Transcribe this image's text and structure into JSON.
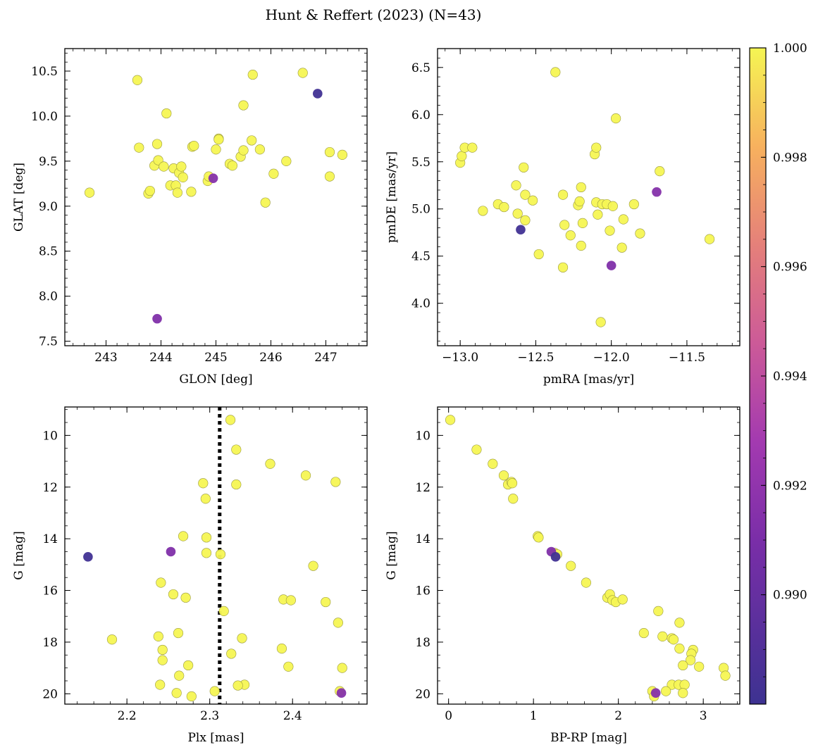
{
  "figure": {
    "title": "Hunt & Reffert (2023) (N=43)"
  },
  "colorbar": {
    "colormap": "plasma",
    "range": [
      0.988,
      1.0
    ],
    "ticks": [
      "1.000",
      "0.998",
      "0.996",
      "0.994",
      "0.992",
      "0.990"
    ],
    "tick_values": [
      1.0,
      0.998,
      0.996,
      0.994,
      0.992,
      0.99
    ]
  },
  "chart_data": [
    {
      "type": "scatter",
      "xlabel": "GLON [deg]",
      "ylabel": "GLAT [deg]",
      "xlim": [
        242.25,
        247.75
      ],
      "ylim": [
        7.45,
        10.75
      ],
      "xticks": [
        "243",
        "244",
        "245",
        "246",
        "247"
      ],
      "yticks": [
        "7.5",
        "8.0",
        "8.5",
        "9.0",
        "9.5",
        "10.0",
        "10.5"
      ],
      "points": [
        [
          242.7,
          9.15,
          1.0
        ],
        [
          243.57,
          10.4,
          1.0
        ],
        [
          243.6,
          9.65,
          1.0
        ],
        [
          243.77,
          9.14,
          1.0
        ],
        [
          243.8,
          9.17,
          1.0
        ],
        [
          243.88,
          9.45,
          1.0
        ],
        [
          243.93,
          9.69,
          1.0
        ],
        [
          243.95,
          9.51,
          1.0
        ],
        [
          244.1,
          10.03,
          1.0
        ],
        [
          244.17,
          9.23,
          1.0
        ],
        [
          244.23,
          9.42,
          1.0
        ],
        [
          244.27,
          9.23,
          1.0
        ],
        [
          244.3,
          9.15,
          1.0
        ],
        [
          244.33,
          9.37,
          1.0
        ],
        [
          244.37,
          9.44,
          1.0
        ],
        [
          244.4,
          9.32,
          1.0
        ],
        [
          244.55,
          9.16,
          1.0
        ],
        [
          244.57,
          9.66,
          1.0
        ],
        [
          244.6,
          9.67,
          1.0
        ],
        [
          244.85,
          9.28,
          1.0
        ],
        [
          244.87,
          9.33,
          1.0
        ],
        [
          245.0,
          9.63,
          1.0
        ],
        [
          245.05,
          9.75,
          1.0
        ],
        [
          245.25,
          9.47,
          1.0
        ],
        [
          245.3,
          9.45,
          1.0
        ],
        [
          245.45,
          9.55,
          1.0
        ],
        [
          245.5,
          10.12,
          1.0
        ],
        [
          245.5,
          9.62,
          1.0
        ],
        [
          245.67,
          10.46,
          1.0
        ],
        [
          245.65,
          9.73,
          1.0
        ],
        [
          245.8,
          9.63,
          1.0
        ],
        [
          245.9,
          9.04,
          1.0
        ],
        [
          246.05,
          9.36,
          1.0
        ],
        [
          246.28,
          9.5,
          1.0
        ],
        [
          246.58,
          10.48,
          1.0
        ],
        [
          247.07,
          9.6,
          1.0
        ],
        [
          247.07,
          9.33,
          1.0
        ],
        [
          247.3,
          9.57,
          1.0
        ],
        [
          244.95,
          9.31,
          0.9915
        ],
        [
          243.93,
          7.75,
          0.9912
        ],
        [
          246.85,
          10.25,
          0.9882
        ],
        [
          245.05,
          9.74,
          1.0
        ],
        [
          244.05,
          9.44,
          1.0
        ]
      ]
    },
    {
      "type": "scatter",
      "xlabel": "pmRA [mas/yr]",
      "ylabel": "pmDE [mas/yr]",
      "xlim": [
        -13.15,
        -11.15
      ],
      "ylim": [
        3.55,
        6.7
      ],
      "xticks": [
        "−13.0",
        "−12.5",
        "−12.0",
        "−11.5"
      ],
      "yticks": [
        "4.0",
        "4.5",
        "5.0",
        "5.5",
        "6.0",
        "6.5"
      ],
      "points": [
        [
          -13.0,
          5.49,
          1.0
        ],
        [
          -12.99,
          5.56,
          1.0
        ],
        [
          -12.97,
          5.65,
          1.0
        ],
        [
          -12.92,
          5.65,
          1.0
        ],
        [
          -12.85,
          4.98,
          1.0
        ],
        [
          -12.75,
          5.05,
          1.0
        ],
        [
          -12.71,
          5.02,
          1.0
        ],
        [
          -12.63,
          5.25,
          1.0
        ],
        [
          -12.62,
          4.95,
          1.0
        ],
        [
          -12.58,
          5.44,
          1.0
        ],
        [
          -12.57,
          5.15,
          1.0
        ],
        [
          -12.57,
          4.88,
          1.0
        ],
        [
          -12.52,
          5.09,
          1.0
        ],
        [
          -12.48,
          4.52,
          1.0
        ],
        [
          -12.37,
          6.45,
          1.0
        ],
        [
          -12.32,
          5.15,
          1.0
        ],
        [
          -12.31,
          4.83,
          1.0
        ],
        [
          -12.32,
          4.38,
          1.0
        ],
        [
          -12.27,
          4.72,
          1.0
        ],
        [
          -12.22,
          5.04,
          1.0
        ],
        [
          -12.21,
          5.08,
          1.0
        ],
        [
          -12.2,
          5.23,
          1.0
        ],
        [
          -12.19,
          4.85,
          1.0
        ],
        [
          -12.2,
          4.61,
          1.0
        ],
        [
          -12.11,
          5.58,
          1.0
        ],
        [
          -12.1,
          5.65,
          1.0
        ],
        [
          -12.09,
          4.94,
          1.0
        ],
        [
          -12.1,
          5.07,
          1.0
        ],
        [
          -12.06,
          5.05,
          1.0
        ],
        [
          -12.03,
          5.05,
          1.0
        ],
        [
          -12.01,
          4.77,
          1.0
        ],
        [
          -11.99,
          5.03,
          1.0
        ],
        [
          -12.07,
          3.8,
          1.0
        ],
        [
          -11.97,
          5.96,
          1.0
        ],
        [
          -11.92,
          4.89,
          1.0
        ],
        [
          -11.93,
          4.59,
          1.0
        ],
        [
          -11.85,
          5.05,
          1.0
        ],
        [
          -11.81,
          4.74,
          1.0
        ],
        [
          -11.68,
          5.4,
          1.0
        ],
        [
          -11.35,
          4.68,
          1.0
        ],
        [
          -11.7,
          5.18,
          0.9915
        ],
        [
          -12.0,
          4.4,
          0.9912
        ],
        [
          -12.6,
          4.78,
          0.9882
        ]
      ]
    },
    {
      "type": "scatter",
      "xlabel": "Plx [mas]",
      "ylabel": "G [mag]",
      "xlim": [
        2.125,
        2.49
      ],
      "ylim": [
        20.4,
        8.9
      ],
      "y_inverted": true,
      "xticks": [
        "2.2",
        "2.3",
        "2.4"
      ],
      "yticks": [
        "10",
        "12",
        "14",
        "16",
        "18",
        "20"
      ],
      "vline": {
        "x": 2.312,
        "style": "dotted",
        "color": "#000000"
      },
      "points": [
        [
          2.325,
          9.4,
          1.0
        ],
        [
          2.332,
          10.55,
          1.0
        ],
        [
          2.373,
          11.1,
          1.0
        ],
        [
          2.292,
          11.85,
          1.0
        ],
        [
          2.332,
          11.9,
          1.0
        ],
        [
          2.416,
          11.55,
          1.0
        ],
        [
          2.452,
          11.8,
          1.0
        ],
        [
          2.295,
          12.45,
          1.0
        ],
        [
          2.268,
          13.9,
          1.0
        ],
        [
          2.296,
          13.95,
          1.0
        ],
        [
          2.296,
          14.55,
          1.0
        ],
        [
          2.313,
          14.6,
          1.0
        ],
        [
          2.425,
          15.05,
          1.0
        ],
        [
          2.241,
          15.7,
          1.0
        ],
        [
          2.256,
          16.15,
          1.0
        ],
        [
          2.271,
          16.28,
          1.0
        ],
        [
          2.389,
          16.35,
          1.0
        ],
        [
          2.398,
          16.38,
          1.0
        ],
        [
          2.44,
          16.45,
          1.0
        ],
        [
          2.317,
          16.8,
          1.0
        ],
        [
          2.455,
          17.25,
          1.0
        ],
        [
          2.262,
          17.65,
          1.0
        ],
        [
          2.238,
          17.78,
          1.0
        ],
        [
          2.182,
          17.9,
          1.0
        ],
        [
          2.339,
          17.85,
          1.0
        ],
        [
          2.243,
          18.3,
          1.0
        ],
        [
          2.387,
          18.25,
          1.0
        ],
        [
          2.326,
          18.45,
          1.0
        ],
        [
          2.243,
          18.7,
          1.0
        ],
        [
          2.274,
          18.9,
          1.0
        ],
        [
          2.395,
          18.95,
          1.0
        ],
        [
          2.46,
          19.0,
          1.0
        ],
        [
          2.263,
          19.3,
          1.0
        ],
        [
          2.24,
          19.65,
          1.0
        ],
        [
          2.342,
          19.65,
          1.0
        ],
        [
          2.334,
          19.68,
          1.0
        ],
        [
          2.26,
          19.97,
          1.0
        ],
        [
          2.306,
          19.9,
          1.0
        ],
        [
          2.457,
          19.9,
          1.0
        ],
        [
          2.278,
          20.1,
          1.0
        ],
        [
          2.253,
          14.5,
          0.9912
        ],
        [
          2.459,
          19.97,
          0.9915
        ],
        [
          2.153,
          14.7,
          0.9882
        ]
      ]
    },
    {
      "type": "scatter",
      "xlabel": "BP-RP [mag]",
      "ylabel": "G [mag]",
      "xlim": [
        -0.13,
        3.43
      ],
      "ylim": [
        20.4,
        8.9
      ],
      "y_inverted": true,
      "xticks": [
        "0",
        "1",
        "2",
        "3"
      ],
      "yticks": [
        "10",
        "12",
        "14",
        "16",
        "18",
        "20"
      ],
      "points": [
        [
          0.02,
          9.4,
          1.0
        ],
        [
          0.33,
          10.55,
          1.0
        ],
        [
          0.52,
          11.1,
          1.0
        ],
        [
          0.65,
          11.55,
          1.0
        ],
        [
          0.7,
          11.9,
          1.0
        ],
        [
          0.74,
          11.8,
          1.0
        ],
        [
          0.75,
          11.85,
          1.0
        ],
        [
          0.76,
          12.45,
          1.0
        ],
        [
          1.05,
          13.9,
          1.0
        ],
        [
          1.06,
          13.95,
          1.0
        ],
        [
          1.25,
          14.55,
          1.0
        ],
        [
          1.28,
          14.6,
          1.0
        ],
        [
          1.44,
          15.05,
          1.0
        ],
        [
          1.62,
          15.7,
          1.0
        ],
        [
          1.87,
          16.28,
          1.0
        ],
        [
          1.9,
          16.15,
          1.0
        ],
        [
          1.93,
          16.38,
          1.0
        ],
        [
          1.97,
          16.45,
          1.0
        ],
        [
          2.05,
          16.35,
          1.0
        ],
        [
          2.47,
          16.8,
          1.0
        ],
        [
          2.3,
          17.65,
          1.0
        ],
        [
          2.52,
          17.78,
          1.0
        ],
        [
          2.63,
          17.85,
          1.0
        ],
        [
          2.65,
          17.9,
          1.0
        ],
        [
          2.72,
          17.25,
          1.0
        ],
        [
          2.72,
          18.25,
          1.0
        ],
        [
          2.88,
          18.3,
          1.0
        ],
        [
          2.86,
          18.45,
          1.0
        ],
        [
          2.85,
          18.7,
          1.0
        ],
        [
          2.76,
          18.9,
          1.0
        ],
        [
          2.95,
          18.95,
          1.0
        ],
        [
          3.24,
          19.0,
          1.0
        ],
        [
          3.26,
          19.3,
          1.0
        ],
        [
          2.63,
          19.65,
          1.0
        ],
        [
          2.71,
          19.65,
          1.0
        ],
        [
          2.78,
          19.65,
          1.0
        ],
        [
          2.4,
          19.9,
          1.0
        ],
        [
          2.56,
          19.9,
          1.0
        ],
        [
          2.76,
          19.97,
          1.0
        ],
        [
          2.42,
          20.1,
          1.0
        ],
        [
          1.21,
          14.5,
          0.9912
        ],
        [
          1.26,
          14.7,
          0.9882
        ],
        [
          2.44,
          19.97,
          0.9915
        ]
      ]
    }
  ]
}
